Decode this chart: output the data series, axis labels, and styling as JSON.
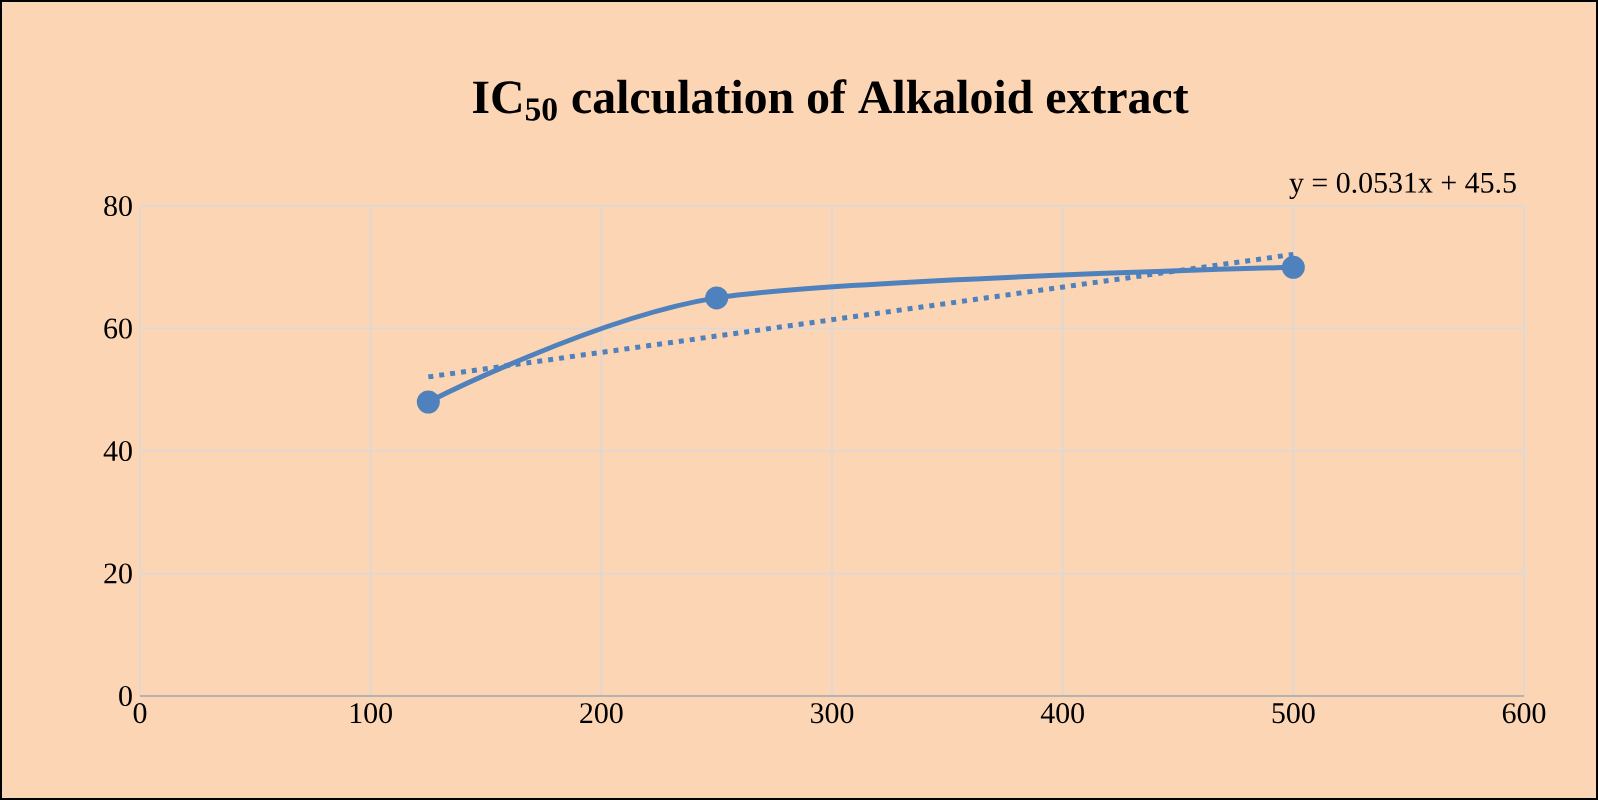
{
  "chart_data": {
    "type": "line",
    "title": "IC$_{50}$ calculation of Alkaloid extract",
    "xlim": [
      0,
      600
    ],
    "xticks": [
      0,
      100,
      200,
      300,
      400,
      500,
      600
    ],
    "ylim": [
      0,
      80
    ],
    "yticks": [
      0,
      20,
      40,
      60,
      80
    ],
    "grid": true,
    "series": [
      {
        "color": "#4f81bd",
        "x": [
          125,
          250,
          500
        ],
        "values": [
          48,
          65,
          70
        ],
        "marker": "circle",
        "line_style": "solid"
      },
      {
        "color": "#4f81bd",
        "x": [
          125,
          500
        ],
        "values": [
          52.1,
          72.1
        ],
        "marker": "none",
        "line_style": "dotted"
      }
    ],
    "annotations": [
      "y = 0.0531x + 45.5"
    ]
  }
}
